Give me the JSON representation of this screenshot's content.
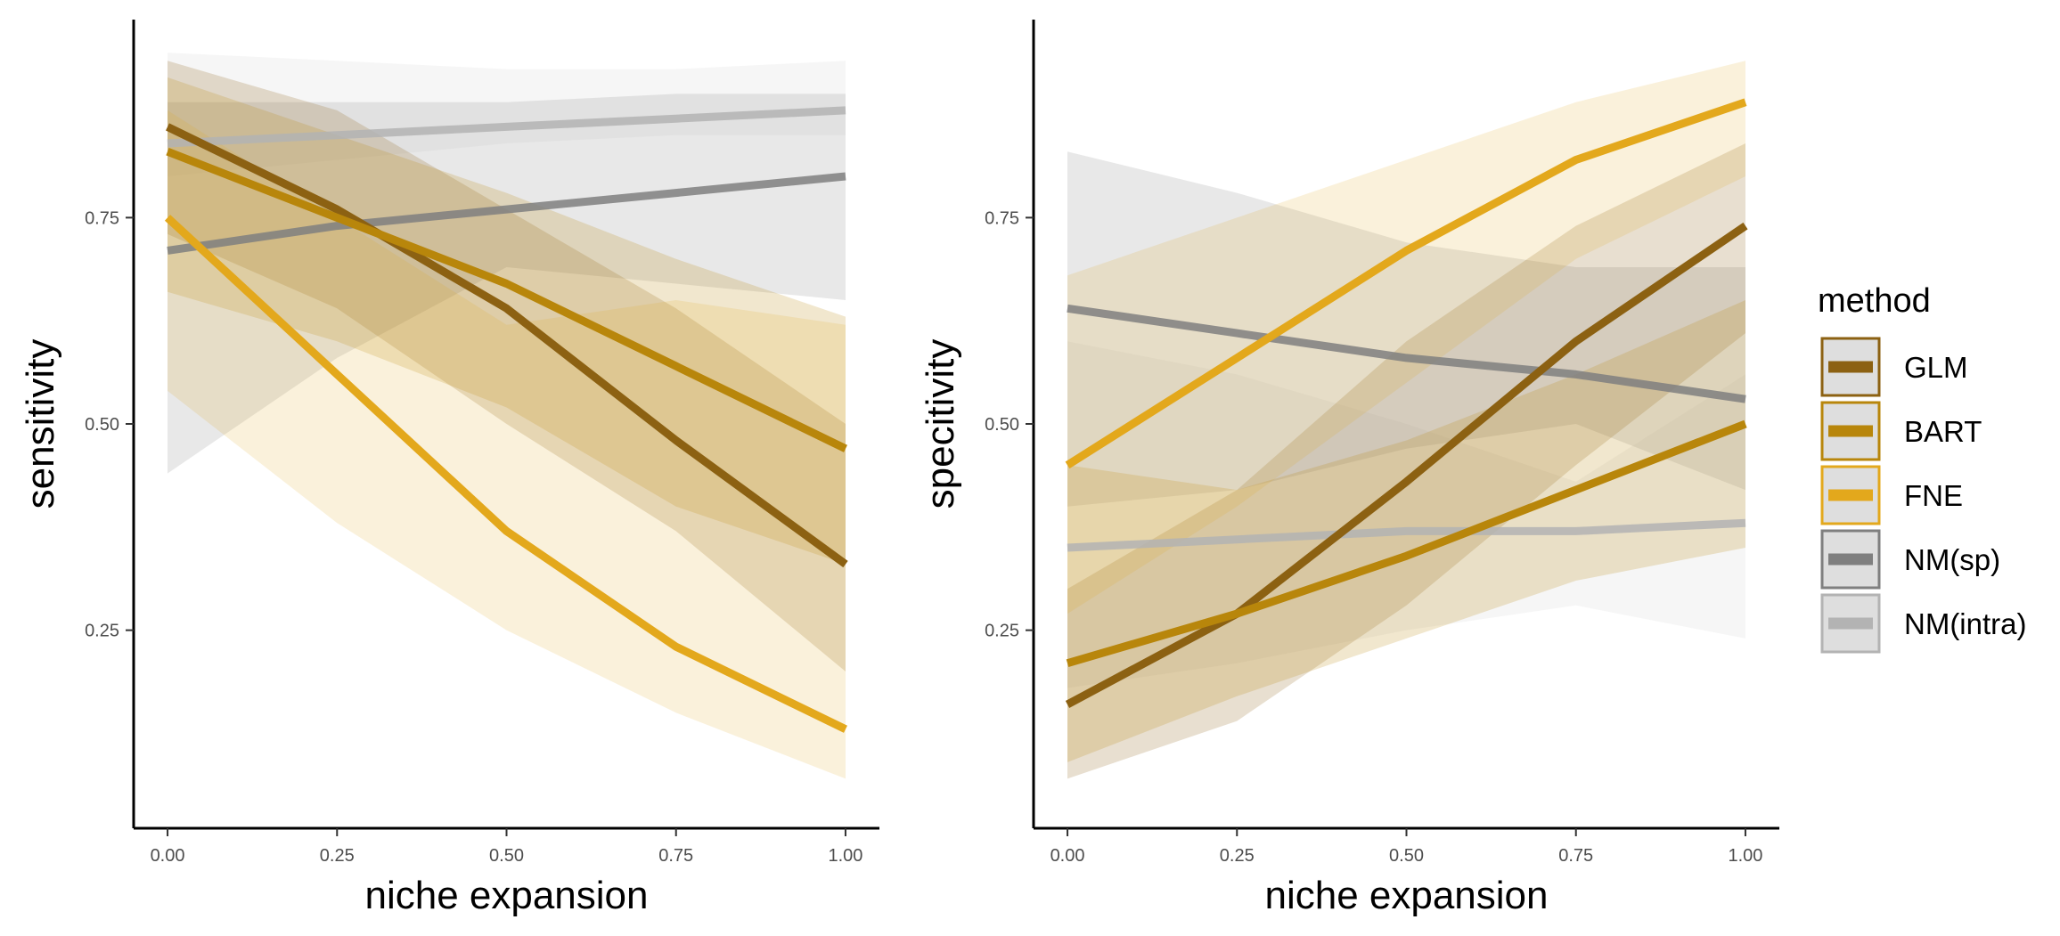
{
  "chart_data": [
    {
      "type": "line",
      "xlabel": "niche expansion",
      "ylabel": "sensitivity",
      "xlim": [
        -0.05,
        1.05
      ],
      "ylim": [
        0.01,
        0.99
      ],
      "xticks": [
        0,
        0.25,
        0.5,
        0.75,
        1
      ],
      "xtick_labels": [
        "0.00",
        "0.25",
        "0.50",
        "0.75",
        "1.00"
      ],
      "yticks": [
        0.25,
        0.5,
        0.75
      ],
      "ytick_labels": [
        "0.25",
        "0.50",
        "0.75"
      ],
      "grid": false,
      "series": [
        {
          "name": "NM(sp)",
          "x": [
            0,
            0.25,
            0.5,
            0.75,
            1
          ],
          "y": [
            0.71,
            0.74,
            0.76,
            0.78,
            0.8
          ],
          "lower": [
            0.44,
            0.58,
            0.69,
            0.67,
            0.65
          ],
          "upper": [
            0.89,
            0.89,
            0.89,
            0.9,
            0.9
          ]
        },
        {
          "name": "NM(intra)",
          "x": [
            0,
            0.25,
            0.5,
            0.75,
            1
          ],
          "y": [
            0.84,
            0.85,
            0.86,
            0.87,
            0.88
          ],
          "lower": [
            0.8,
            0.82,
            0.84,
            0.85,
            0.85
          ],
          "upper": [
            0.95,
            0.94,
            0.93,
            0.93,
            0.94
          ]
        },
        {
          "name": "GLM",
          "x": [
            0,
            0.25,
            0.5,
            0.75,
            1
          ],
          "y": [
            0.86,
            0.76,
            0.64,
            0.48,
            0.33
          ],
          "lower": [
            0.73,
            0.64,
            0.5,
            0.37,
            0.2
          ],
          "upper": [
            0.94,
            0.88,
            0.76,
            0.64,
            0.5
          ]
        },
        {
          "name": "BART",
          "x": [
            0,
            0.25,
            0.5,
            0.75,
            1
          ],
          "y": [
            0.83,
            0.75,
            0.67,
            0.57,
            0.47
          ],
          "lower": [
            0.66,
            0.6,
            0.52,
            0.4,
            0.33
          ],
          "upper": [
            0.92,
            0.85,
            0.78,
            0.7,
            0.63
          ]
        },
        {
          "name": "FNE",
          "x": [
            0,
            0.25,
            0.5,
            0.75,
            1
          ],
          "y": [
            0.75,
            0.56,
            0.37,
            0.23,
            0.13
          ],
          "lower": [
            0.54,
            0.38,
            0.25,
            0.15,
            0.07
          ],
          "upper": [
            0.88,
            0.75,
            0.62,
            0.65,
            0.62
          ]
        }
      ]
    },
    {
      "type": "line",
      "xlabel": "niche expansion",
      "ylabel": "specitivity",
      "xlim": [
        -0.05,
        1.05
      ],
      "ylim": [
        0.01,
        0.99
      ],
      "xticks": [
        0,
        0.25,
        0.5,
        0.75,
        1
      ],
      "xtick_labels": [
        "0.00",
        "0.25",
        "0.50",
        "0.75",
        "1.00"
      ],
      "yticks": [
        0.25,
        0.5,
        0.75
      ],
      "ytick_labels": [
        "0.25",
        "0.50",
        "0.75"
      ],
      "grid": false,
      "series": [
        {
          "name": "NM(sp)",
          "x": [
            0,
            0.25,
            0.5,
            0.75,
            1
          ],
          "y": [
            0.64,
            0.61,
            0.58,
            0.56,
            0.53
          ],
          "lower": [
            0.4,
            0.42,
            0.47,
            0.5,
            0.42
          ],
          "upper": [
            0.83,
            0.78,
            0.72,
            0.69,
            0.69
          ]
        },
        {
          "name": "NM(intra)",
          "x": [
            0,
            0.25,
            0.5,
            0.75,
            1
          ],
          "y": [
            0.35,
            0.36,
            0.37,
            0.37,
            0.38
          ],
          "lower": [
            0.18,
            0.21,
            0.25,
            0.28,
            0.24
          ],
          "upper": [
            0.6,
            0.56,
            0.5,
            0.43,
            0.56
          ]
        },
        {
          "name": "GLM",
          "x": [
            0,
            0.25,
            0.5,
            0.75,
            1
          ],
          "y": [
            0.16,
            0.27,
            0.43,
            0.6,
            0.74
          ],
          "lower": [
            0.07,
            0.14,
            0.28,
            0.45,
            0.61
          ],
          "upper": [
            0.3,
            0.42,
            0.6,
            0.74,
            0.84
          ]
        },
        {
          "name": "BART",
          "x": [
            0,
            0.25,
            0.5,
            0.75,
            1
          ],
          "y": [
            0.21,
            0.27,
            0.34,
            0.42,
            0.5
          ],
          "lower": [
            0.09,
            0.17,
            0.24,
            0.31,
            0.35
          ],
          "upper": [
            0.45,
            0.42,
            0.48,
            0.56,
            0.65
          ]
        },
        {
          "name": "FNE",
          "x": [
            0,
            0.25,
            0.5,
            0.75,
            1
          ],
          "y": [
            0.45,
            0.58,
            0.71,
            0.82,
            0.89
          ],
          "lower": [
            0.27,
            0.4,
            0.55,
            0.7,
            0.8
          ],
          "upper": [
            0.68,
            0.75,
            0.82,
            0.89,
            0.94
          ]
        }
      ]
    }
  ],
  "legend": {
    "title": "method",
    "placement": "right",
    "items": [
      {
        "name": "GLM",
        "color": "#8c6112"
      },
      {
        "name": "BART",
        "color": "#b8860b"
      },
      {
        "name": "FNE",
        "color": "#e3a81c"
      },
      {
        "name": "NM(sp)",
        "color": "#7f7f7f"
      },
      {
        "name": "NM(intra)",
        "color": "#b3b3b3"
      }
    ]
  }
}
